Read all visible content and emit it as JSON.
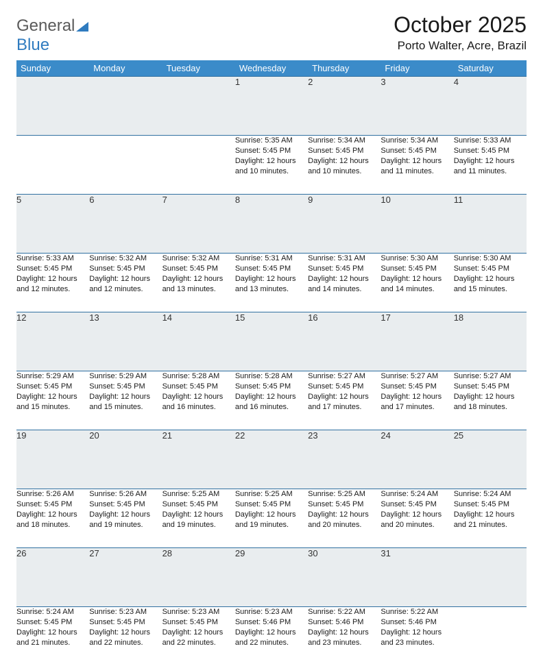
{
  "brand": {
    "part1": "General",
    "part2": "Blue"
  },
  "title": "October 2025",
  "location": "Porto Walter, Acre, Brazil",
  "colors": {
    "header_bg": "#3b8bc9",
    "header_text": "#ffffff",
    "daynum_bg": "#e9edef",
    "row_border": "#2f6fa0",
    "logo_blue": "#2f7bbf",
    "logo_gray": "#5a5a5a"
  },
  "weekdays": [
    "Sunday",
    "Monday",
    "Tuesday",
    "Wednesday",
    "Thursday",
    "Friday",
    "Saturday"
  ],
  "weeks": [
    [
      null,
      null,
      null,
      {
        "n": "1",
        "sr": "5:35 AM",
        "ss": "5:45 PM",
        "dl": "12 hours and 10 minutes."
      },
      {
        "n": "2",
        "sr": "5:34 AM",
        "ss": "5:45 PM",
        "dl": "12 hours and 10 minutes."
      },
      {
        "n": "3",
        "sr": "5:34 AM",
        "ss": "5:45 PM",
        "dl": "12 hours and 11 minutes."
      },
      {
        "n": "4",
        "sr": "5:33 AM",
        "ss": "5:45 PM",
        "dl": "12 hours and 11 minutes."
      }
    ],
    [
      {
        "n": "5",
        "sr": "5:33 AM",
        "ss": "5:45 PM",
        "dl": "12 hours and 12 minutes."
      },
      {
        "n": "6",
        "sr": "5:32 AM",
        "ss": "5:45 PM",
        "dl": "12 hours and 12 minutes."
      },
      {
        "n": "7",
        "sr": "5:32 AM",
        "ss": "5:45 PM",
        "dl": "12 hours and 13 minutes."
      },
      {
        "n": "8",
        "sr": "5:31 AM",
        "ss": "5:45 PM",
        "dl": "12 hours and 13 minutes."
      },
      {
        "n": "9",
        "sr": "5:31 AM",
        "ss": "5:45 PM",
        "dl": "12 hours and 14 minutes."
      },
      {
        "n": "10",
        "sr": "5:30 AM",
        "ss": "5:45 PM",
        "dl": "12 hours and 14 minutes."
      },
      {
        "n": "11",
        "sr": "5:30 AM",
        "ss": "5:45 PM",
        "dl": "12 hours and 15 minutes."
      }
    ],
    [
      {
        "n": "12",
        "sr": "5:29 AM",
        "ss": "5:45 PM",
        "dl": "12 hours and 15 minutes."
      },
      {
        "n": "13",
        "sr": "5:29 AM",
        "ss": "5:45 PM",
        "dl": "12 hours and 15 minutes."
      },
      {
        "n": "14",
        "sr": "5:28 AM",
        "ss": "5:45 PM",
        "dl": "12 hours and 16 minutes."
      },
      {
        "n": "15",
        "sr": "5:28 AM",
        "ss": "5:45 PM",
        "dl": "12 hours and 16 minutes."
      },
      {
        "n": "16",
        "sr": "5:27 AM",
        "ss": "5:45 PM",
        "dl": "12 hours and 17 minutes."
      },
      {
        "n": "17",
        "sr": "5:27 AM",
        "ss": "5:45 PM",
        "dl": "12 hours and 17 minutes."
      },
      {
        "n": "18",
        "sr": "5:27 AM",
        "ss": "5:45 PM",
        "dl": "12 hours and 18 minutes."
      }
    ],
    [
      {
        "n": "19",
        "sr": "5:26 AM",
        "ss": "5:45 PM",
        "dl": "12 hours and 18 minutes."
      },
      {
        "n": "20",
        "sr": "5:26 AM",
        "ss": "5:45 PM",
        "dl": "12 hours and 19 minutes."
      },
      {
        "n": "21",
        "sr": "5:25 AM",
        "ss": "5:45 PM",
        "dl": "12 hours and 19 minutes."
      },
      {
        "n": "22",
        "sr": "5:25 AM",
        "ss": "5:45 PM",
        "dl": "12 hours and 19 minutes."
      },
      {
        "n": "23",
        "sr": "5:25 AM",
        "ss": "5:45 PM",
        "dl": "12 hours and 20 minutes."
      },
      {
        "n": "24",
        "sr": "5:24 AM",
        "ss": "5:45 PM",
        "dl": "12 hours and 20 minutes."
      },
      {
        "n": "25",
        "sr": "5:24 AM",
        "ss": "5:45 PM",
        "dl": "12 hours and 21 minutes."
      }
    ],
    [
      {
        "n": "26",
        "sr": "5:24 AM",
        "ss": "5:45 PM",
        "dl": "12 hours and 21 minutes."
      },
      {
        "n": "27",
        "sr": "5:23 AM",
        "ss": "5:45 PM",
        "dl": "12 hours and 22 minutes."
      },
      {
        "n": "28",
        "sr": "5:23 AM",
        "ss": "5:45 PM",
        "dl": "12 hours and 22 minutes."
      },
      {
        "n": "29",
        "sr": "5:23 AM",
        "ss": "5:46 PM",
        "dl": "12 hours and 22 minutes."
      },
      {
        "n": "30",
        "sr": "5:22 AM",
        "ss": "5:46 PM",
        "dl": "12 hours and 23 minutes."
      },
      {
        "n": "31",
        "sr": "5:22 AM",
        "ss": "5:46 PM",
        "dl": "12 hours and 23 minutes."
      },
      null
    ]
  ],
  "labels": {
    "sunrise": "Sunrise:",
    "sunset": "Sunset:",
    "daylight": "Daylight:"
  }
}
